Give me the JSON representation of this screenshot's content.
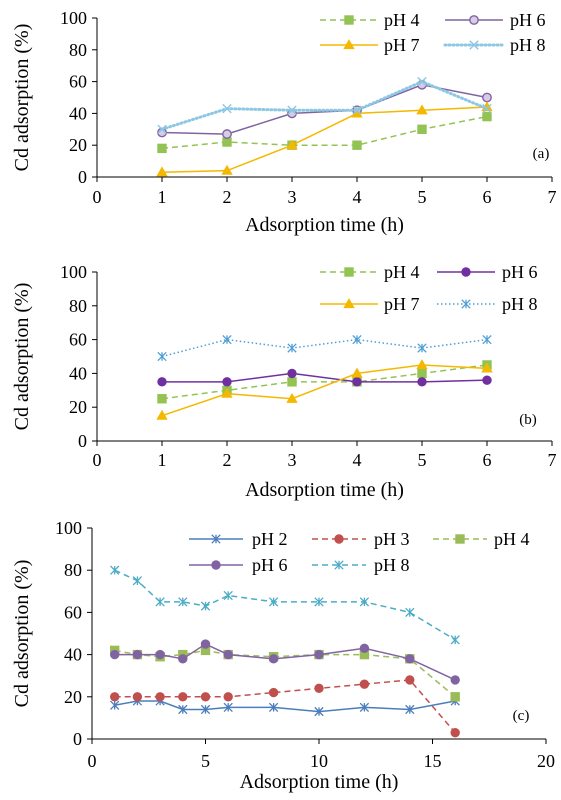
{
  "chart_data": [
    {
      "type": "line",
      "panel_label": "(a)",
      "xlabel": "Adsorption time (h)",
      "ylabel": "Cd adsorption (%)",
      "xlim": [
        0,
        7
      ],
      "ylim": [
        0,
        100
      ],
      "x_ticks": [
        0,
        1,
        2,
        3,
        4,
        5,
        6,
        7
      ],
      "y_ticks": [
        0,
        20,
        40,
        60,
        80,
        100
      ],
      "grid": false,
      "legend_position": "top-right",
      "series": [
        {
          "name": "pH 4",
          "color": "#92C353",
          "line": "dashed",
          "marker": "square",
          "x": [
            1,
            2,
            3,
            4,
            5,
            6
          ],
          "y": [
            18,
            22,
            20,
            20,
            30,
            38
          ]
        },
        {
          "name": "pH 6",
          "color": "#8064A2",
          "line": "solid",
          "marker": "circle-hollow",
          "x": [
            1,
            2,
            3,
            4,
            5,
            6
          ],
          "y": [
            28,
            27,
            40,
            42,
            58,
            50
          ]
        },
        {
          "name": "pH 7",
          "color": "#F5B800",
          "line": "solid",
          "marker": "triangle",
          "x": [
            1,
            2,
            3,
            4,
            5,
            6
          ],
          "y": [
            3,
            4,
            20,
            40,
            42,
            44
          ]
        },
        {
          "name": "pH 8",
          "color": "#8CC7E3",
          "line": "dotted-thick",
          "marker": "x",
          "x": [
            1,
            2,
            3,
            4,
            5,
            6
          ],
          "y": [
            30,
            43,
            42,
            42,
            60,
            43
          ]
        }
      ]
    },
    {
      "type": "line",
      "panel_label": "(b)",
      "xlabel": "Adsorption time (h)",
      "ylabel": "Cd adsorption (%)",
      "xlim": [
        0,
        7
      ],
      "ylim": [
        0,
        100
      ],
      "x_ticks": [
        0,
        1,
        2,
        3,
        4,
        5,
        6,
        7
      ],
      "y_ticks": [
        0,
        20,
        40,
        60,
        80,
        100
      ],
      "grid": false,
      "legend_position": "top-right",
      "series": [
        {
          "name": "pH 4",
          "color": "#92C353",
          "line": "dashed",
          "marker": "square",
          "x": [
            1,
            2,
            3,
            4,
            5,
            6
          ],
          "y": [
            25,
            30,
            35,
            35,
            40,
            45
          ]
        },
        {
          "name": "pH 6",
          "color": "#7030A0",
          "line": "solid",
          "marker": "circle",
          "x": [
            1,
            2,
            3,
            4,
            5,
            6
          ],
          "y": [
            35,
            35,
            40,
            35,
            35,
            36
          ]
        },
        {
          "name": "pH 7",
          "color": "#F5B800",
          "line": "solid",
          "marker": "triangle",
          "x": [
            1,
            2,
            3,
            4,
            5,
            6
          ],
          "y": [
            15,
            28,
            25,
            40,
            45,
            43
          ]
        },
        {
          "name": "pH 8",
          "color": "#4F9FD6",
          "line": "dotted",
          "marker": "star",
          "x": [
            1,
            2,
            3,
            4,
            5,
            6
          ],
          "y": [
            50,
            60,
            55,
            60,
            55,
            60
          ]
        }
      ]
    },
    {
      "type": "line",
      "panel_label": "(c)",
      "xlabel": "Adsorption time (h)",
      "ylabel": "Cd adsorption (%)",
      "xlim": [
        0,
        20
      ],
      "ylim": [
        0,
        100
      ],
      "x_ticks": [
        0,
        5,
        10,
        15,
        20
      ],
      "y_ticks": [
        0,
        20,
        40,
        60,
        80,
        100
      ],
      "grid": false,
      "legend_position": "top",
      "series": [
        {
          "name": "pH 2",
          "color": "#4A7EBB",
          "line": "solid",
          "marker": "star",
          "x": [
            1,
            2,
            3,
            4,
            5,
            6,
            8,
            10,
            12,
            14,
            16
          ],
          "y": [
            16,
            18,
            18,
            14,
            14,
            15,
            15,
            13,
            15,
            14,
            18
          ]
        },
        {
          "name": "pH 3",
          "color": "#C0504D",
          "line": "dashed",
          "marker": "circle",
          "x": [
            1,
            2,
            3,
            4,
            5,
            6,
            8,
            10,
            12,
            14,
            16
          ],
          "y": [
            20,
            20,
            20,
            20,
            20,
            20,
            22,
            24,
            26,
            28,
            3
          ]
        },
        {
          "name": "pH 4",
          "color": "#9BBB59",
          "line": "dashed",
          "marker": "square",
          "x": [
            1,
            2,
            3,
            4,
            5,
            6,
            8,
            10,
            12,
            14,
            16
          ],
          "y": [
            42,
            40,
            39,
            40,
            42,
            40,
            39,
            40,
            40,
            38,
            20
          ]
        },
        {
          "name": "pH 6",
          "color": "#8064A2",
          "line": "solid",
          "marker": "circle",
          "x": [
            1,
            2,
            3,
            4,
            5,
            6,
            8,
            10,
            12,
            14,
            16
          ],
          "y": [
            40,
            40,
            40,
            38,
            45,
            40,
            38,
            40,
            43,
            38,
            28
          ]
        },
        {
          "name": "pH 8",
          "color": "#4BACC6",
          "line": "dashed",
          "marker": "star",
          "x": [
            1,
            2,
            3,
            4,
            5,
            6,
            8,
            10,
            12,
            14,
            16
          ],
          "y": [
            80,
            75,
            65,
            65,
            63,
            68,
            65,
            65,
            65,
            60,
            47
          ]
        }
      ]
    }
  ]
}
